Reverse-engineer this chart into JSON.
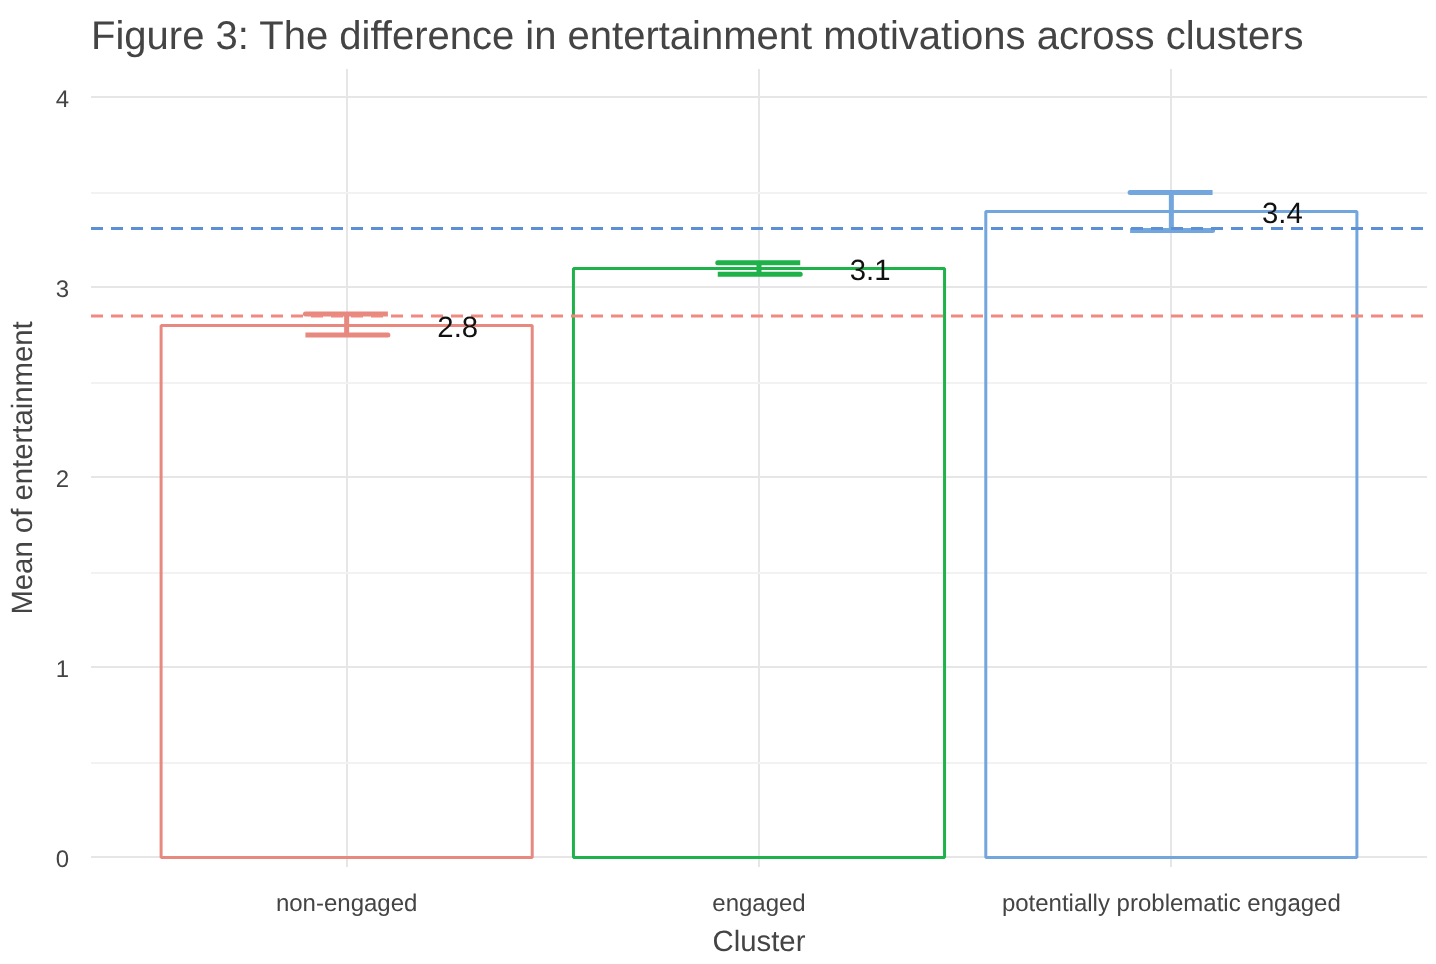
{
  "chart_data": {
    "type": "bar",
    "title": "Figure 3: The difference in entertainment motivations across clusters",
    "xlabel": "Cluster",
    "ylabel": "Mean of entertainment",
    "categories": [
      "non-engaged",
      "engaged",
      "potentially problematic engaged"
    ],
    "values": [
      2.8,
      3.1,
      3.4
    ],
    "colors": [
      "#e8897f",
      "#1fb14a",
      "#72a6dc"
    ],
    "errors": [
      [
        2.75,
        2.86
      ],
      [
        3.07,
        3.13
      ],
      [
        3.3,
        3.5
      ]
    ],
    "data_labels": true,
    "ylim": [
      -0.05,
      4.15
    ],
    "yticks": [
      0,
      1,
      2,
      3,
      4
    ],
    "grid": true,
    "ref_lines": [
      {
        "axis": "y",
        "value": 2.85,
        "color": "#f08a80",
        "line_style": "dashed"
      },
      {
        "axis": "y",
        "value": 3.31,
        "color": "#5b8fd6",
        "line_style": "dashed"
      }
    ]
  }
}
